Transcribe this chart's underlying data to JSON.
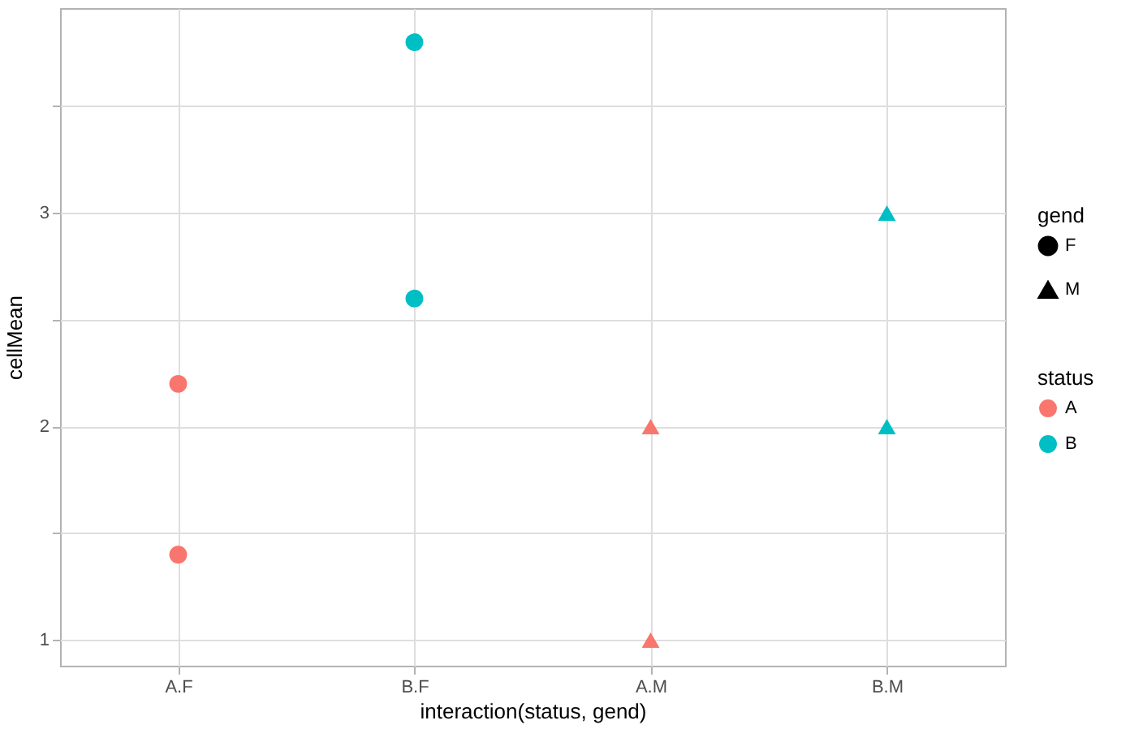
{
  "chart_data": {
    "type": "scatter",
    "xlabel": "interaction(status, gend)",
    "ylabel": "cellMean",
    "categories": [
      "A.F",
      "B.F",
      "A.M",
      "B.M"
    ],
    "series": [
      {
        "name": "A",
        "color": "#f8766d",
        "marker": "circle",
        "x": [
          "A.F",
          "A.F"
        ],
        "values": [
          2.2,
          1.4
        ]
      },
      {
        "name": "B",
        "color": "#00bfc4",
        "marker": "circle",
        "x": [
          "B.F",
          "B.F"
        ],
        "values": [
          3.8,
          2.6
        ]
      },
      {
        "color": "#f8766d",
        "marker": "triangle",
        "x": [
          "A.M",
          "A.M"
        ],
        "values": [
          2.0,
          1.0
        ]
      },
      {
        "color": "#00bfc4",
        "marker": "triangle",
        "x": [
          "B.M",
          "B.M"
        ],
        "values": [
          3.0,
          2.0
        ]
      }
    ],
    "ylim": [
      0.88,
      3.96
    ],
    "yticks": [
      1,
      {
        "value": 1.5,
        "label": null
      },
      2,
      {
        "value": 2.5,
        "label": null
      },
      3,
      {
        "value": 3.5,
        "label": null
      }
    ],
    "grid": true,
    "legend": "right",
    "legend_title": "status",
    "annotations": [
      "gend",
      "F",
      "M"
    ]
  }
}
